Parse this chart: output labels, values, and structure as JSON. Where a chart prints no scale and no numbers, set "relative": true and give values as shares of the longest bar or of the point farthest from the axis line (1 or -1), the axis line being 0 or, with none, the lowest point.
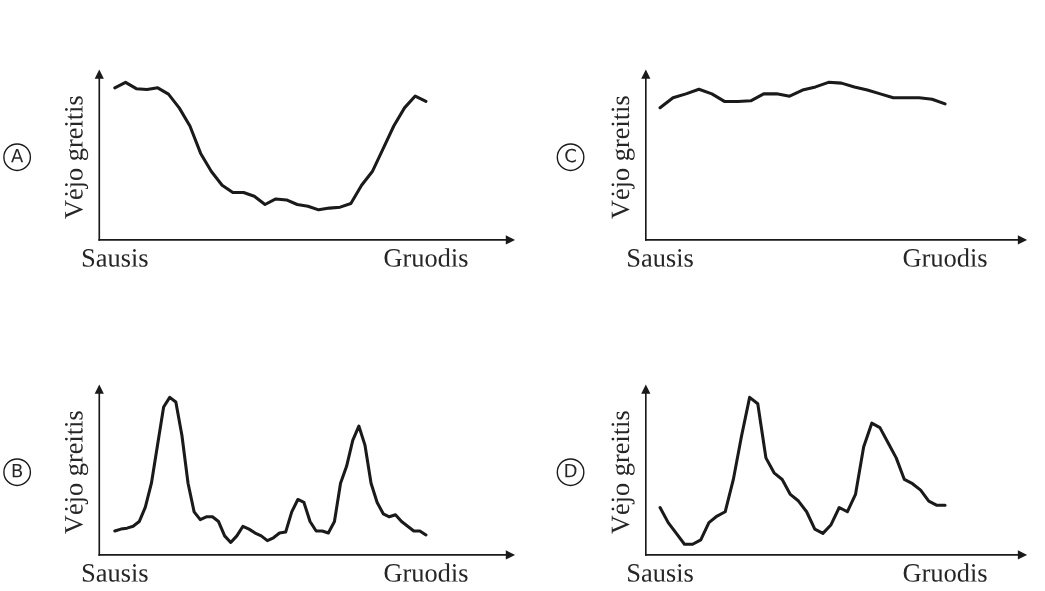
{
  "chart_data": [
    {
      "type": "line",
      "title": "A",
      "ylabel": "Vėjo greitis",
      "relative": true,
      "grid": false,
      "legend": false,
      "categories": [
        "Sausis",
        null,
        null,
        null,
        null,
        null,
        null,
        null,
        null,
        null,
        null,
        null,
        null,
        null,
        null,
        null,
        null,
        null,
        null,
        null,
        null,
        null,
        null,
        null,
        null,
        null,
        null,
        null,
        null,
        "Gruodis"
      ],
      "series": [
        {
          "color": "#1a1a1a",
          "values": [
            0.965,
            1,
            0.96,
            0.954,
            0.965,
            0.925,
            0.838,
            0.723,
            0.549,
            0.434,
            0.347,
            0.301,
            0.301,
            0.277,
            0.225,
            0.26,
            0.254,
            0.225,
            0.214,
            0.191,
            0.202,
            0.208,
            0.231,
            0.347,
            0.434,
            0.578,
            0.723,
            0.838,
            0.913,
            0.879
          ]
        }
      ]
    },
    {
      "type": "line",
      "title": "C",
      "ylabel": "Vėjo greitis",
      "relative": true,
      "grid": false,
      "legend": false,
      "categories": [
        "Sausis",
        null,
        null,
        null,
        null,
        null,
        null,
        null,
        null,
        null,
        null,
        null,
        null,
        null,
        null,
        null,
        null,
        null,
        null,
        null,
        null,
        null,
        "Gruodis"
      ],
      "series": [
        {
          "color": "#1a1a1a",
          "values": [
            0.839,
            0.902,
            0.927,
            0.956,
            0.927,
            0.878,
            0.878,
            0.883,
            0.927,
            0.927,
            0.912,
            0.951,
            0.971,
            1,
            0.995,
            0.971,
            0.951,
            0.927,
            0.902,
            0.902,
            0.902,
            0.893,
            0.863
          ]
        }
      ]
    },
    {
      "type": "line",
      "title": "B",
      "ylabel": "Vėjo greitis",
      "relative": true,
      "grid": false,
      "legend": false,
      "categories": [
        "Sausis",
        null,
        null,
        null,
        null,
        null,
        null,
        null,
        null,
        null,
        null,
        null,
        null,
        null,
        null,
        null,
        null,
        null,
        null,
        null,
        null,
        null,
        null,
        null,
        null,
        null,
        null,
        null,
        null,
        null,
        null,
        null,
        null,
        null,
        null,
        null,
        null,
        null,
        null,
        null,
        null,
        null,
        null,
        null,
        null,
        null,
        null,
        null,
        null,
        null,
        null,
        "Gruodis"
      ],
      "series": [
        {
          "color": "#1a1a1a",
          "values": [
            0.152,
            0.164,
            0.17,
            0.182,
            0.212,
            0.303,
            0.455,
            0.697,
            0.939,
            1,
            0.97,
            0.758,
            0.455,
            0.273,
            0.224,
            0.242,
            0.242,
            0.212,
            0.121,
            0.079,
            0.121,
            0.182,
            0.164,
            0.139,
            0.121,
            0.091,
            0.109,
            0.139,
            0.145,
            0.273,
            0.352,
            0.333,
            0.212,
            0.152,
            0.152,
            0.139,
            0.212,
            0.455,
            0.564,
            0.727,
            0.818,
            0.697,
            0.455,
            0.333,
            0.261,
            0.242,
            0.255,
            0.212,
            0.182,
            0.152,
            0.152,
            0.127
          ]
        }
      ]
    },
    {
      "type": "line",
      "title": "D",
      "ylabel": "Vėjo greitis",
      "relative": true,
      "grid": false,
      "legend": false,
      "categories": [
        "Sausis",
        null,
        null,
        null,
        null,
        null,
        null,
        null,
        null,
        null,
        null,
        null,
        null,
        null,
        null,
        null,
        null,
        null,
        null,
        null,
        null,
        null,
        null,
        null,
        null,
        null,
        null,
        null,
        null,
        null,
        null,
        null,
        null,
        null,
        null,
        "Gruodis"
      ],
      "series": [
        {
          "color": "#1a1a1a",
          "values": [
            0.301,
            0.205,
            0.137,
            0.068,
            0.068,
            0.096,
            0.205,
            0.247,
            0.274,
            0.479,
            0.753,
            1,
            0.959,
            0.616,
            0.521,
            0.479,
            0.384,
            0.342,
            0.274,
            0.164,
            0.137,
            0.192,
            0.301,
            0.274,
            0.384,
            0.685,
            0.836,
            0.808,
            0.712,
            0.616,
            0.479,
            0.452,
            0.411,
            0.342,
            0.315,
            0.315
          ]
        }
      ]
    }
  ]
}
